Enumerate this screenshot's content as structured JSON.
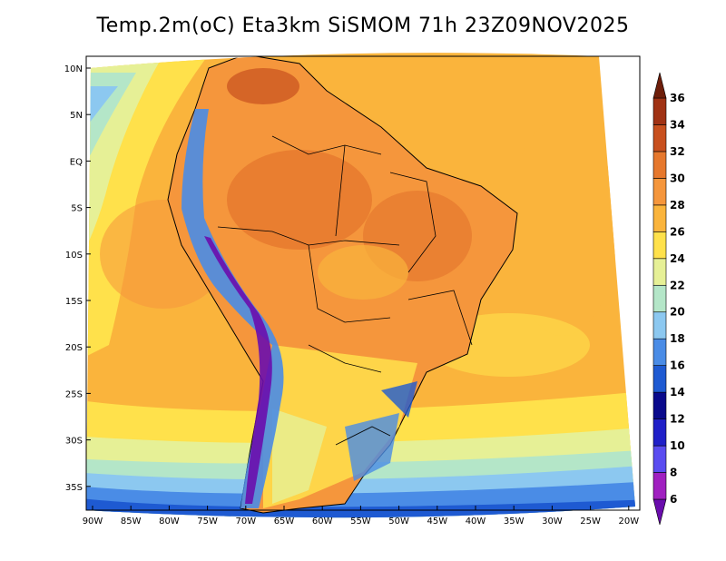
{
  "title": "Temp.2m(oC) Eta3km SiSMOM 71h 23Z09NOV2025",
  "map": {
    "lat_labels": [
      "10N",
      "5N",
      "EQ",
      "5S",
      "10S",
      "15S",
      "20S",
      "25S",
      "30S",
      "35S"
    ],
    "lon_labels": [
      "90W",
      "85W",
      "80W",
      "75W",
      "70W",
      "65W",
      "60W",
      "55W",
      "50W",
      "45W",
      "40W",
      "35W",
      "30W",
      "25W",
      "20W"
    ],
    "lon_range": [
      -90,
      -20
    ],
    "lat_range": [
      -38,
      10
    ],
    "colorbar": {
      "labels": [
        "6",
        "8",
        "10",
        "12",
        "14",
        "16",
        "18",
        "20",
        "22",
        "24",
        "26",
        "28",
        "30",
        "32",
        "34",
        "36"
      ],
      "colors": [
        "#6a0dad",
        "#a020c0",
        "#5a4cf0",
        "#2020c8",
        "#0a0a8c",
        "#1e5ad2",
        "#4a8ce6",
        "#8cc8f0",
        "#b4e6c8",
        "#e6f096",
        "#ffe14b",
        "#fab43c",
        "#f5963c",
        "#e6782d",
        "#c8501e",
        "#a03214",
        "#6e1e0a"
      ]
    }
  }
}
